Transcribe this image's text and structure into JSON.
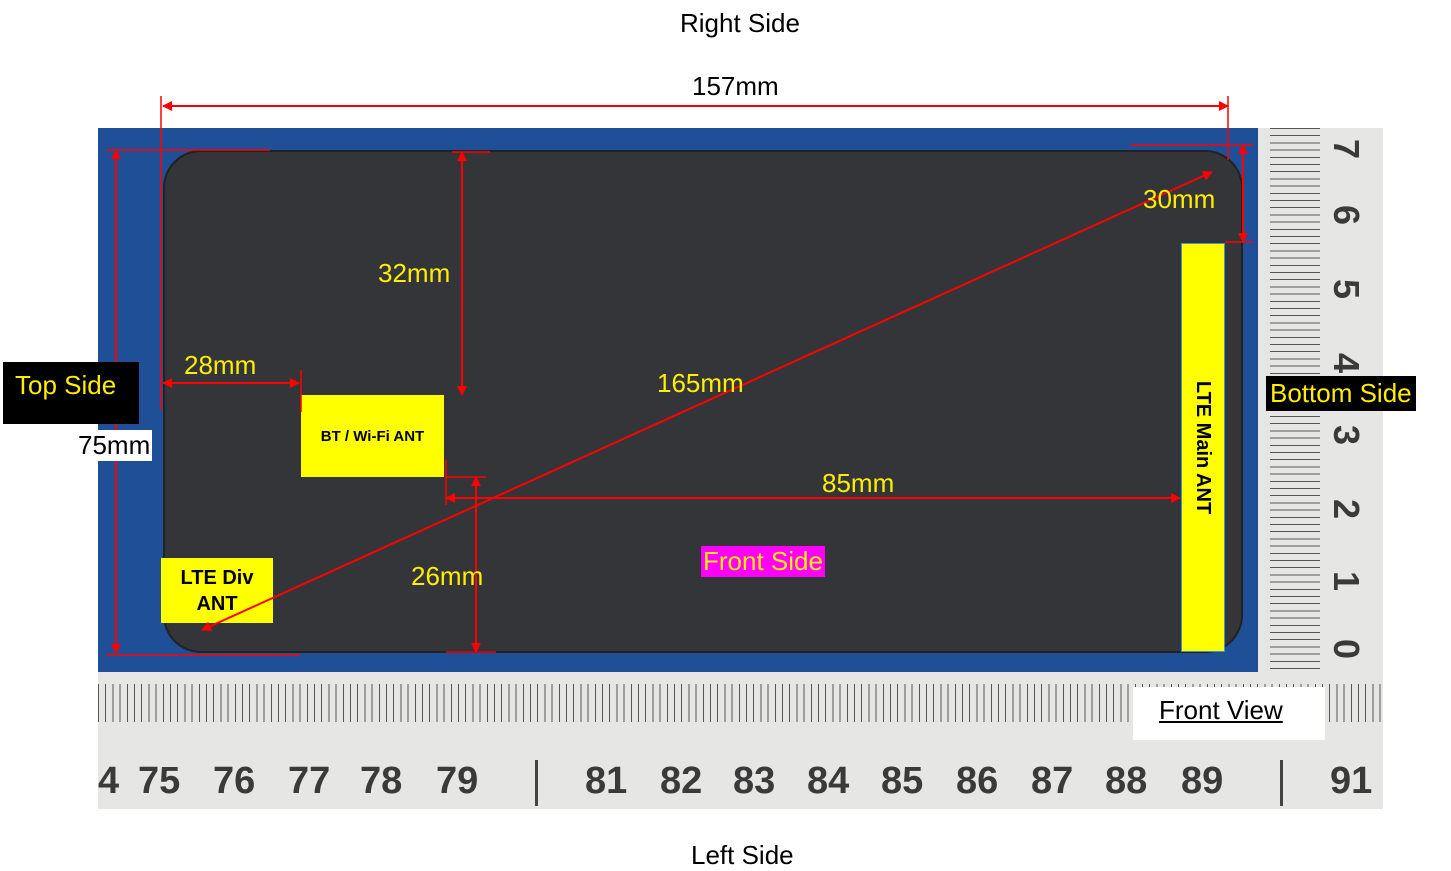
{
  "sides": {
    "right": "Right Side",
    "left": "Left Side",
    "top": "Top Side",
    "bottom": "Bottom Side",
    "front": "Front Side"
  },
  "view_label": "Front View",
  "dimensions": {
    "length": "157mm",
    "width": "75mm",
    "diagonal": "165mm",
    "bt_wifi_from_right": "32mm",
    "bt_wifi_from_top": "28mm",
    "lte_main_from_right": "30mm",
    "bt_wifi_to_lte_main": "85mm",
    "bt_wifi_from_left": "26mm"
  },
  "antennas": {
    "bt_wifi": "BT / Wi-Fi ANT",
    "lte_div_line1": "LTE Div",
    "lte_div_line2": "ANT",
    "lte_main": "LTE Main ANT"
  },
  "ruler_bottom_numbers": [
    "4",
    "75",
    "76",
    "77",
    "78",
    "79",
    "81",
    "82",
    "83",
    "84",
    "85",
    "86",
    "87",
    "88",
    "89",
    "91"
  ],
  "ruler_right_numbers": [
    "7",
    "6",
    "5",
    "4",
    "3",
    "2",
    "1",
    "0"
  ],
  "colors": {
    "arrow": "#ff0000",
    "dimension_text": "#ffee00",
    "antenna_fill": "#ffff00",
    "front_side_bg": "#ff00ff",
    "backdrop": "#1f4f96",
    "device": "#333538"
  }
}
